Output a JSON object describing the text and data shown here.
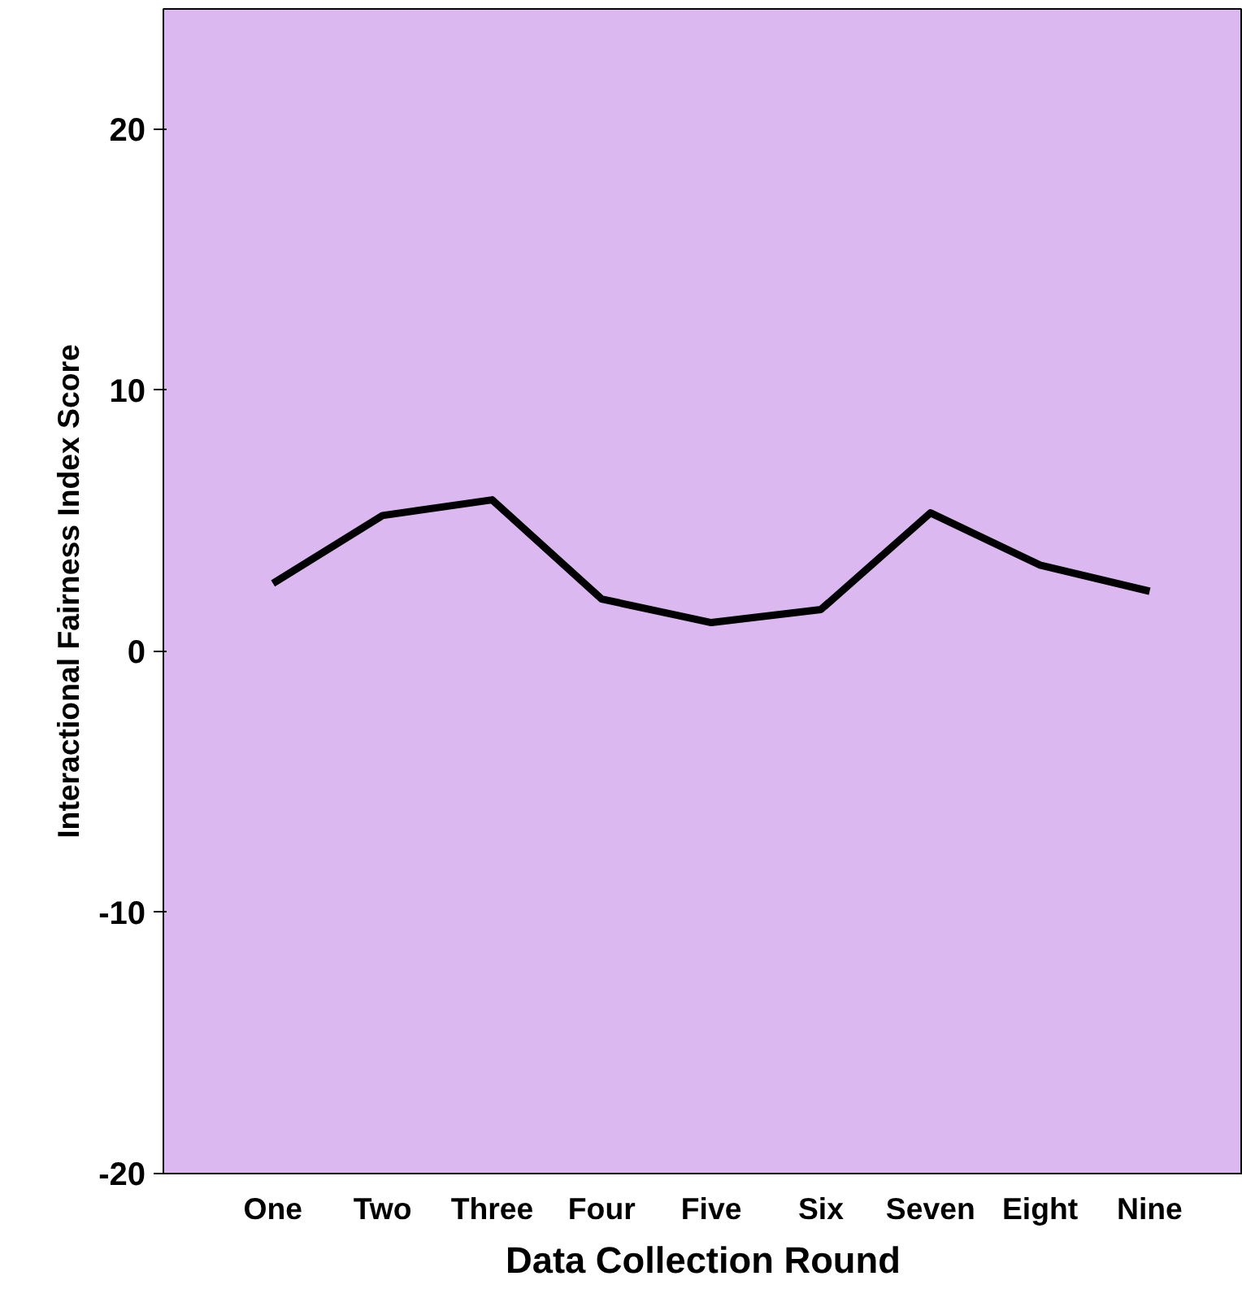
{
  "chart_data": {
    "type": "line",
    "xlabel": "Data Collection Round",
    "ylabel": "Interactional Fairness Index Score",
    "categories": [
      "One",
      "Two",
      "Three",
      "Four",
      "Five",
      "Six",
      "Seven",
      "Eight",
      "Nine"
    ],
    "series": [
      {
        "color": "#000000",
        "values": [
          2.6,
          5.2,
          5.8,
          2.0,
          1.1,
          1.6,
          5.3,
          3.3,
          2.3
        ]
      }
    ],
    "ylim": [
      -20,
      24.6
    ],
    "yticks": [
      -20,
      -10,
      0,
      10,
      20
    ],
    "grid": false,
    "marker": "none",
    "line_style": "solid"
  }
}
